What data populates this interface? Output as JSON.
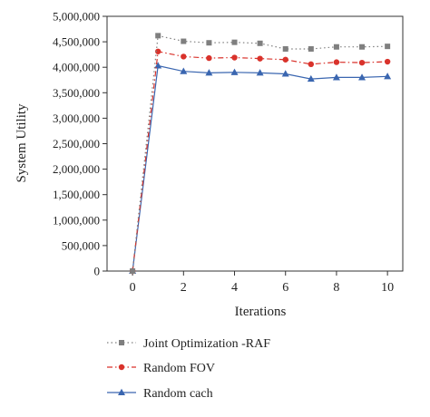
{
  "chart_data": {
    "type": "line",
    "ylabel": "System Utility",
    "xlabel": "Iterations",
    "xlim": [
      -1,
      10.6
    ],
    "ylim": [
      0,
      5000000
    ],
    "x_ticks": [
      0,
      2,
      4,
      6,
      8,
      10
    ],
    "x_tick_labels": [
      "0",
      "2",
      "4",
      "6",
      "8",
      "10"
    ],
    "y_ticks": [
      0,
      500000,
      1000000,
      1500000,
      2000000,
      2500000,
      3000000,
      3500000,
      4000000,
      4500000,
      5000000
    ],
    "y_tick_labels": [
      "0",
      "500,000",
      "1,000,000",
      "1,500,000",
      "2,000,000",
      "2,500,000",
      "3,000,000",
      "3,500,000",
      "4,000,000",
      "4,500,000",
      "5,000,000"
    ],
    "grid": false,
    "legend_position": "bottom",
    "x": [
      0,
      1,
      2,
      3,
      4,
      5,
      6,
      7,
      8,
      9,
      10
    ],
    "series": [
      {
        "name": "Joint Optimization -RAF",
        "color": "#7f7f7f",
        "line_style": "dotted",
        "marker": "square",
        "values": [
          0,
          4620000,
          4510000,
          4480000,
          4490000,
          4470000,
          4360000,
          4360000,
          4400000,
          4400000,
          4410000
        ]
      },
      {
        "name": "Random FOV",
        "color": "#d9322b",
        "line_style": "dashdot",
        "marker": "circle",
        "values": [
          0,
          4310000,
          4210000,
          4180000,
          4190000,
          4170000,
          4150000,
          4060000,
          4100000,
          4090000,
          4110000
        ]
      },
      {
        "name": "Random cach",
        "color": "#3a66b0",
        "line_style": "solid",
        "marker": "triangle",
        "values": [
          0,
          4030000,
          3920000,
          3890000,
          3900000,
          3890000,
          3870000,
          3770000,
          3800000,
          3800000,
          3820000
        ]
      }
    ]
  }
}
